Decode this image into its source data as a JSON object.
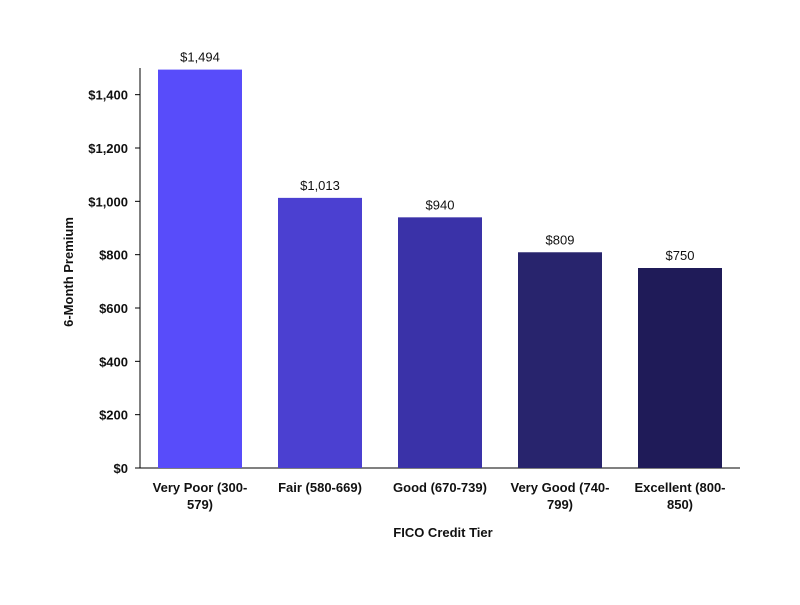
{
  "chart_data": {
    "type": "bar",
    "title": "",
    "xlabel": "FICO Credit Tier",
    "ylabel": "6-Month Premium",
    "categories": [
      [
        "Very Poor (300-",
        "579)"
      ],
      [
        "Fair (580-669)"
      ],
      [
        "Good (670-739)"
      ],
      [
        "Very Good (740-",
        "799)"
      ],
      [
        "Excellent (800-",
        "850)"
      ]
    ],
    "values": [
      1494,
      1013,
      940,
      809,
      750
    ],
    "value_labels": [
      "$1,494",
      "$1,013",
      "$940",
      "$809",
      "$750"
    ],
    "bar_colors": [
      "#584cfa",
      "#4b40d1",
      "#3a32a8",
      "#28246d",
      "#1f1b58"
    ],
    "ylim": [
      0,
      1500
    ],
    "yticks": [
      0,
      200,
      400,
      600,
      800,
      1000,
      1200,
      1400
    ],
    "ytick_labels": [
      "$0",
      "$200",
      "$400",
      "$600",
      "$800",
      "$1,000",
      "$1,200",
      "$1,400"
    ],
    "grid": false,
    "legend": "none"
  }
}
